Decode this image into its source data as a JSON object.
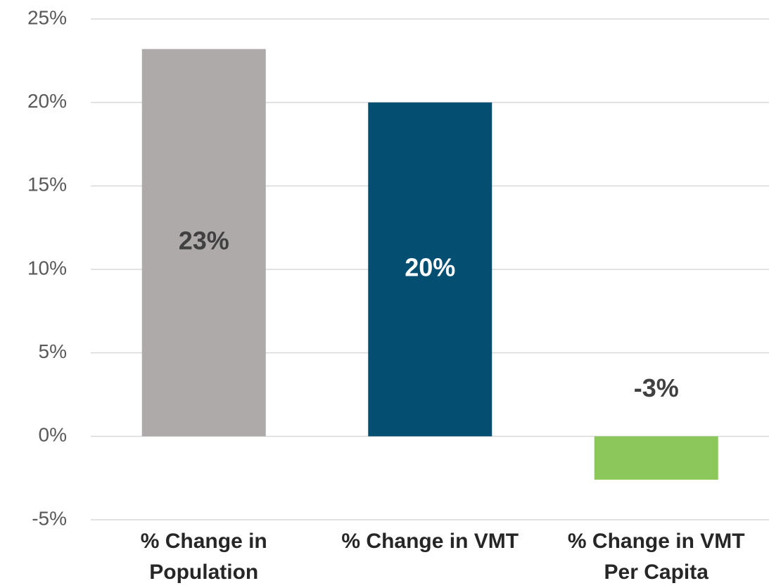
{
  "chart_data": {
    "type": "bar",
    "categories": [
      "% Change in\nPopulation",
      "% Change in VMT",
      "% Change in VMT\nPer Capita"
    ],
    "values": [
      23.2,
      20.0,
      -2.6
    ],
    "value_labels": [
      "23%",
      "20%",
      "-3%"
    ],
    "colors": [
      "#aeaaaa",
      "#044e71",
      "#8bc75a"
    ],
    "value_label_colors": [
      "#404040",
      "#ffffff",
      "#404040"
    ],
    "ylim": [
      -5,
      25
    ],
    "yticks": [
      {
        "value": -5,
        "label": "-5%"
      },
      {
        "value": 0,
        "label": "0%"
      },
      {
        "value": 5,
        "label": "5%"
      },
      {
        "value": 10,
        "label": "10%"
      },
      {
        "value": 15,
        "label": "15%"
      },
      {
        "value": 20,
        "label": "20%"
      },
      {
        "value": 25,
        "label": "25%"
      }
    ],
    "grid": true
  }
}
